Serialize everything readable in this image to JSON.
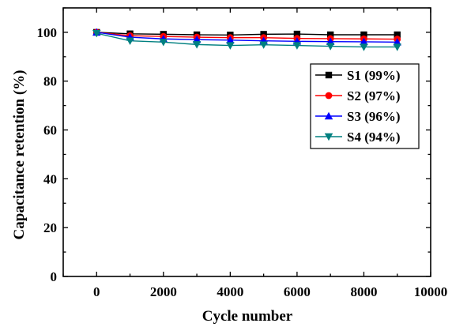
{
  "chart_data": {
    "type": "line",
    "xlabel": "Cycle number",
    "ylabel": "Capacitance retention (%)",
    "xlim": [
      -1000,
      10000
    ],
    "ylim": [
      0,
      110
    ],
    "x_ticks": [
      0,
      2000,
      4000,
      6000,
      8000,
      10000
    ],
    "y_ticks": [
      0,
      20,
      40,
      60,
      80,
      100
    ],
    "x_tick_labels": [
      "0",
      "2000",
      "4000",
      "6000",
      "8000",
      "10000"
    ],
    "y_tick_labels": [
      "0",
      "20",
      "40",
      "60",
      "80",
      "100"
    ],
    "legend_position": "right",
    "x": [
      0,
      1000,
      2000,
      3000,
      4000,
      5000,
      6000,
      7000,
      8000,
      9000
    ],
    "series": [
      {
        "name": "S1 (99%)",
        "color": "#000000",
        "marker": "square",
        "values": [
          100,
          99.4,
          99.2,
          99.0,
          98.9,
          99.2,
          99.3,
          99.0,
          99.0,
          99.0
        ]
      },
      {
        "name": "S2 (97%)",
        "color": "#ff0000",
        "marker": "circle",
        "values": [
          100,
          98.6,
          98.3,
          98.0,
          97.8,
          97.8,
          97.5,
          97.4,
          97.3,
          97.2
        ]
      },
      {
        "name": "S3 (96%)",
        "color": "#0000ff",
        "marker": "triangle-up",
        "values": [
          100,
          98.0,
          97.3,
          97.0,
          96.8,
          96.5,
          96.3,
          96.2,
          96.1,
          96.0
        ]
      },
      {
        "name": "S4 (94%)",
        "color": "#008080",
        "marker": "triangle-down",
        "values": [
          99.6,
          96.5,
          96.0,
          95.0,
          94.6,
          94.9,
          94.6,
          94.3,
          94.0,
          94.0
        ]
      }
    ]
  }
}
